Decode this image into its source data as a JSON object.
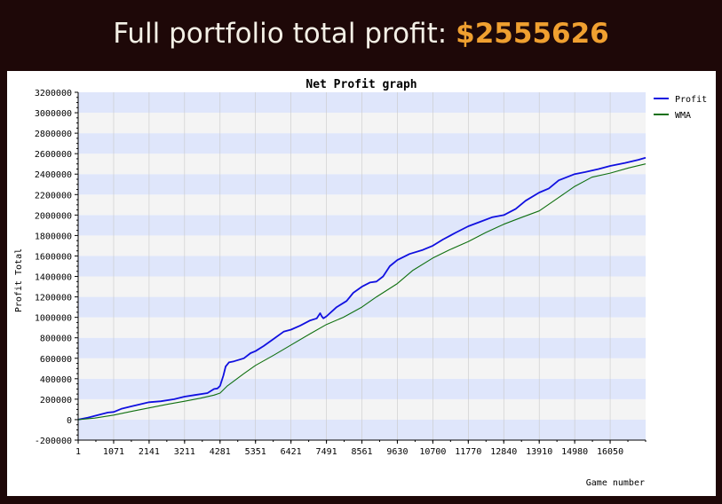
{
  "header": {
    "label": "Full portfolio total profit:",
    "amount": "$2555626",
    "amount_color": "#f0a030"
  },
  "chart_data": {
    "type": "line",
    "title": "Net Profit graph",
    "xlabel": "Game number",
    "ylabel": "Profit Total",
    "xlim": [
      0,
      17120
    ],
    "ylim": [
      -200000,
      3200000
    ],
    "y_ticks": [
      -200000,
      0,
      200000,
      400000,
      600000,
      800000,
      1000000,
      1200000,
      1400000,
      1600000,
      1800000,
      2000000,
      2200000,
      2400000,
      2600000,
      2800000,
      3000000,
      3200000
    ],
    "x_ticks": [
      1,
      1071,
      2141,
      3211,
      4281,
      5351,
      6421,
      7491,
      8561,
      9630,
      10700,
      11770,
      12840,
      13910,
      14980,
      16050
    ],
    "grid": true,
    "band_colors": [
      "#dfe6fb",
      "#f4f4f4"
    ],
    "legend_position": "top-right",
    "series": [
      {
        "name": "Profit",
        "color": "#1010e0",
        "x": [
          1,
          300,
          600,
          900,
          1071,
          1300,
          1600,
          2000,
          2141,
          2500,
          2900,
          3211,
          3500,
          3900,
          4100,
          4200,
          4281,
          4380,
          4450,
          4550,
          4700,
          5000,
          5200,
          5351,
          5600,
          5900,
          6200,
          6421,
          6700,
          7000,
          7200,
          7300,
          7350,
          7400,
          7491,
          7800,
          8100,
          8300,
          8561,
          8800,
          9000,
          9200,
          9400,
          9630,
          10000,
          10400,
          10700,
          11000,
          11400,
          11770,
          12100,
          12500,
          12840,
          13200,
          13500,
          13910,
          14200,
          14500,
          14980,
          15300,
          15700,
          16050,
          16500,
          16900,
          17120
        ],
        "y": [
          0,
          20000,
          45000,
          70000,
          75000,
          105000,
          130000,
          160000,
          170000,
          180000,
          200000,
          225000,
          240000,
          260000,
          300000,
          305000,
          330000,
          430000,
          520000,
          560000,
          570000,
          600000,
          650000,
          670000,
          720000,
          790000,
          860000,
          880000,
          920000,
          970000,
          990000,
          1040000,
          1010000,
          990000,
          1010000,
          1100000,
          1160000,
          1240000,
          1300000,
          1340000,
          1350000,
          1400000,
          1500000,
          1560000,
          1620000,
          1660000,
          1700000,
          1760000,
          1830000,
          1890000,
          1930000,
          1980000,
          2000000,
          2060000,
          2140000,
          2220000,
          2260000,
          2340000,
          2400000,
          2420000,
          2450000,
          2480000,
          2510000,
          2540000,
          2560000
        ]
      },
      {
        "name": "WMA",
        "color": "#107010",
        "x": [
          1,
          500,
          1071,
          1600,
          2141,
          2700,
          3211,
          3700,
          4100,
          4281,
          4500,
          5000,
          5351,
          5900,
          6421,
          7000,
          7491,
          8000,
          8561,
          9000,
          9630,
          10100,
          10700,
          11200,
          11770,
          12300,
          12840,
          13400,
          13910,
          14400,
          14980,
          15500,
          16050,
          16600,
          17120
        ],
        "y": [
          0,
          15000,
          45000,
          80000,
          115000,
          150000,
          180000,
          210000,
          240000,
          260000,
          330000,
          450000,
          530000,
          630000,
          730000,
          840000,
          930000,
          1000000,
          1100000,
          1200000,
          1330000,
          1460000,
          1580000,
          1660000,
          1740000,
          1830000,
          1910000,
          1980000,
          2040000,
          2150000,
          2280000,
          2370000,
          2410000,
          2460000,
          2500000
        ]
      }
    ]
  }
}
